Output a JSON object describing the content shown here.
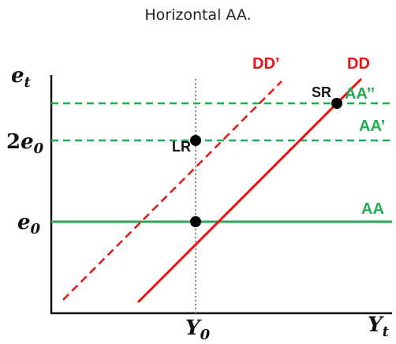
{
  "title": "Horizontal AA.",
  "axes": {
    "y_label": "e",
    "y_label_sub": "t",
    "x_label": "Y",
    "x_label_sub": "t",
    "y_ticks": [
      {
        "coef": "2",
        "var": "e",
        "sub": "0"
      },
      {
        "coef": "",
        "var": "e",
        "sub": "0"
      }
    ],
    "x_tick": {
      "var": "Y",
      "sub": "0"
    }
  },
  "curves": {
    "dd": "DD",
    "dd_prime": "DD’",
    "aa": "AA",
    "aa_prime": "AA’",
    "aa_double_prime": "AA’’"
  },
  "points": {
    "lr": "LR",
    "sr": "SR"
  },
  "colors": {
    "red": "#ee1111",
    "green": "#22aa55",
    "axis": "#111111",
    "guide": "#888888"
  }
}
